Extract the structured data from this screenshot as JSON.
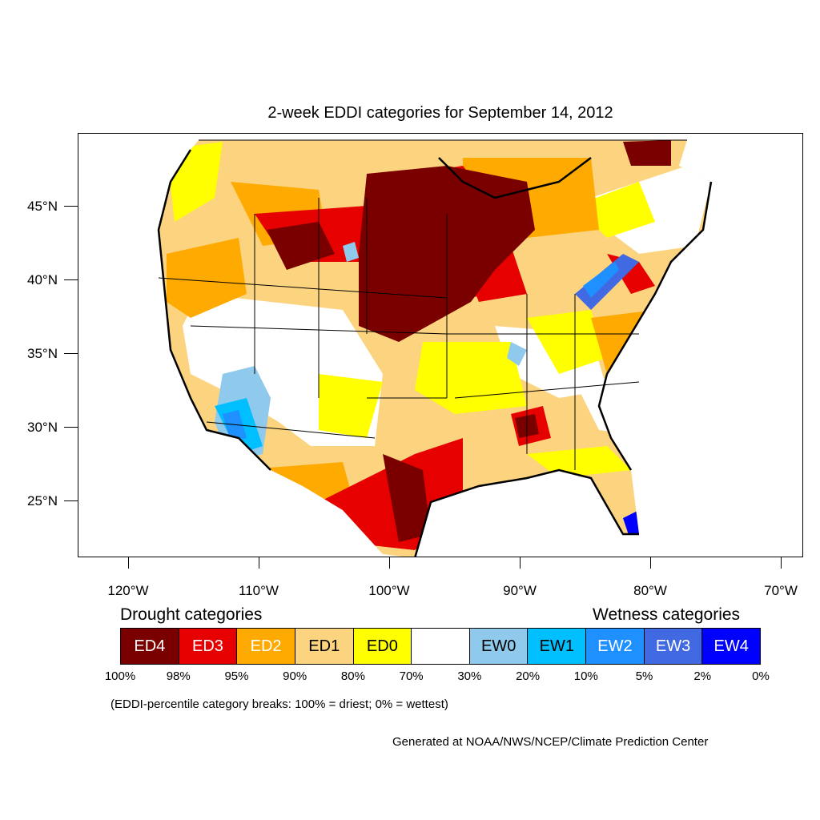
{
  "title": "2-week EDDI categories for September 14, 2012",
  "axes": {
    "lat_labels": [
      "45°N",
      "40°N",
      "35°N",
      "30°N",
      "25°N"
    ],
    "lon_labels": [
      "120°W",
      "110°W",
      "100°W",
      "90°W",
      "80°W",
      "70°W"
    ]
  },
  "legend": {
    "drought_heading": "Drought categories",
    "wetness_heading": "Wetness categories",
    "categories": [
      {
        "label": "ED4",
        "color": "#7a0000",
        "text_color": "#ffffff"
      },
      {
        "label": "ED3",
        "color": "#e60000",
        "text_color": "#ffffff"
      },
      {
        "label": "ED2",
        "color": "#ffaa00",
        "text_color": "#ffffff"
      },
      {
        "label": "ED1",
        "color": "#fcd37f",
        "text_color": "#000000"
      },
      {
        "label": "ED0",
        "color": "#ffff00",
        "text_color": "#000000"
      },
      {
        "label": "",
        "color": "#ffffff",
        "text_color": "#000000"
      },
      {
        "label": "EW0",
        "color": "#8fc9ec",
        "text_color": "#000000"
      },
      {
        "label": "EW1",
        "color": "#00bfff",
        "text_color": "#000000"
      },
      {
        "label": "EW2",
        "color": "#1e90ff",
        "text_color": "#ffffff"
      },
      {
        "label": "EW3",
        "color": "#4169e1",
        "text_color": "#ffffff"
      },
      {
        "label": "EW4",
        "color": "#0000ff",
        "text_color": "#ffffff"
      }
    ],
    "breaks": [
      "100%",
      "98%",
      "95%",
      "90%",
      "80%",
      "70%",
      "30%",
      "20%",
      "10%",
      "5%",
      "2%",
      "0%"
    ]
  },
  "note": "(EDDI-percentile category breaks: 100% = driest; 0% = wettest)",
  "credit": "Generated at NOAA/NWS/NCEP/Climate Prediction Center"
}
